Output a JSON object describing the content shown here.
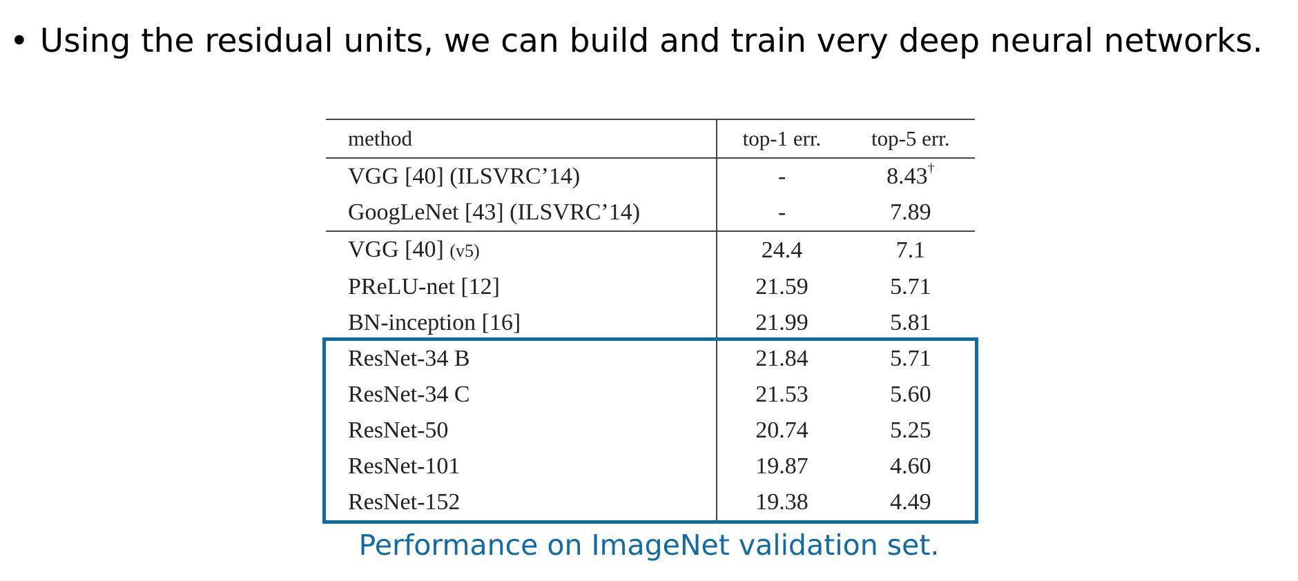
{
  "slide": {
    "bullet_symbol": "•",
    "bullet_text": "Using the residual units, we can build and train very deep neural networks."
  },
  "table": {
    "headers": {
      "method": "method",
      "top1": "top-1 err.",
      "top5": "top-5 err."
    },
    "rows": [
      {
        "method": "VGG [40] (ILSVRC’14)",
        "method_suffix": "",
        "top1": "-",
        "top5": "8.43",
        "top5_mark": "†",
        "bold": false
      },
      {
        "method": "GoogLeNet [43] (ILSVRC’14)",
        "method_suffix": "",
        "top1": "-",
        "top5": "7.89",
        "top5_mark": "",
        "bold": false
      },
      {
        "method": "VGG [40] ",
        "method_suffix": "(v5)",
        "top1": "24.4",
        "top5": "7.1",
        "top5_mark": "",
        "bold": false
      },
      {
        "method": "PReLU-net [12]",
        "method_suffix": "",
        "top1": "21.59",
        "top5": "5.71",
        "top5_mark": "",
        "bold": false
      },
      {
        "method": "BN-inception [16]",
        "method_suffix": "",
        "top1": "21.99",
        "top5": "5.81",
        "top5_mark": "",
        "bold": false
      },
      {
        "method": "ResNet-34 B",
        "method_suffix": "",
        "top1": "21.84",
        "top5": "5.71",
        "top5_mark": "",
        "bold": false
      },
      {
        "method": "ResNet-34 C",
        "method_suffix": "",
        "top1": "21.53",
        "top5": "5.60",
        "top5_mark": "",
        "bold": false
      },
      {
        "method": "ResNet-50",
        "method_suffix": "",
        "top1": "20.74",
        "top5": "5.25",
        "top5_mark": "",
        "bold": false
      },
      {
        "method": "ResNet-101",
        "method_suffix": "",
        "top1": "19.87",
        "top5": "4.60",
        "top5_mark": "",
        "bold": false
      },
      {
        "method": "ResNet-152",
        "method_suffix": "",
        "top1": "19.38",
        "top5": "4.49",
        "top5_mark": "",
        "bold": true
      }
    ]
  },
  "caption": "Performance on ImageNet validation set.",
  "colors": {
    "highlight": "#0f6aa6",
    "text": "#000000"
  }
}
